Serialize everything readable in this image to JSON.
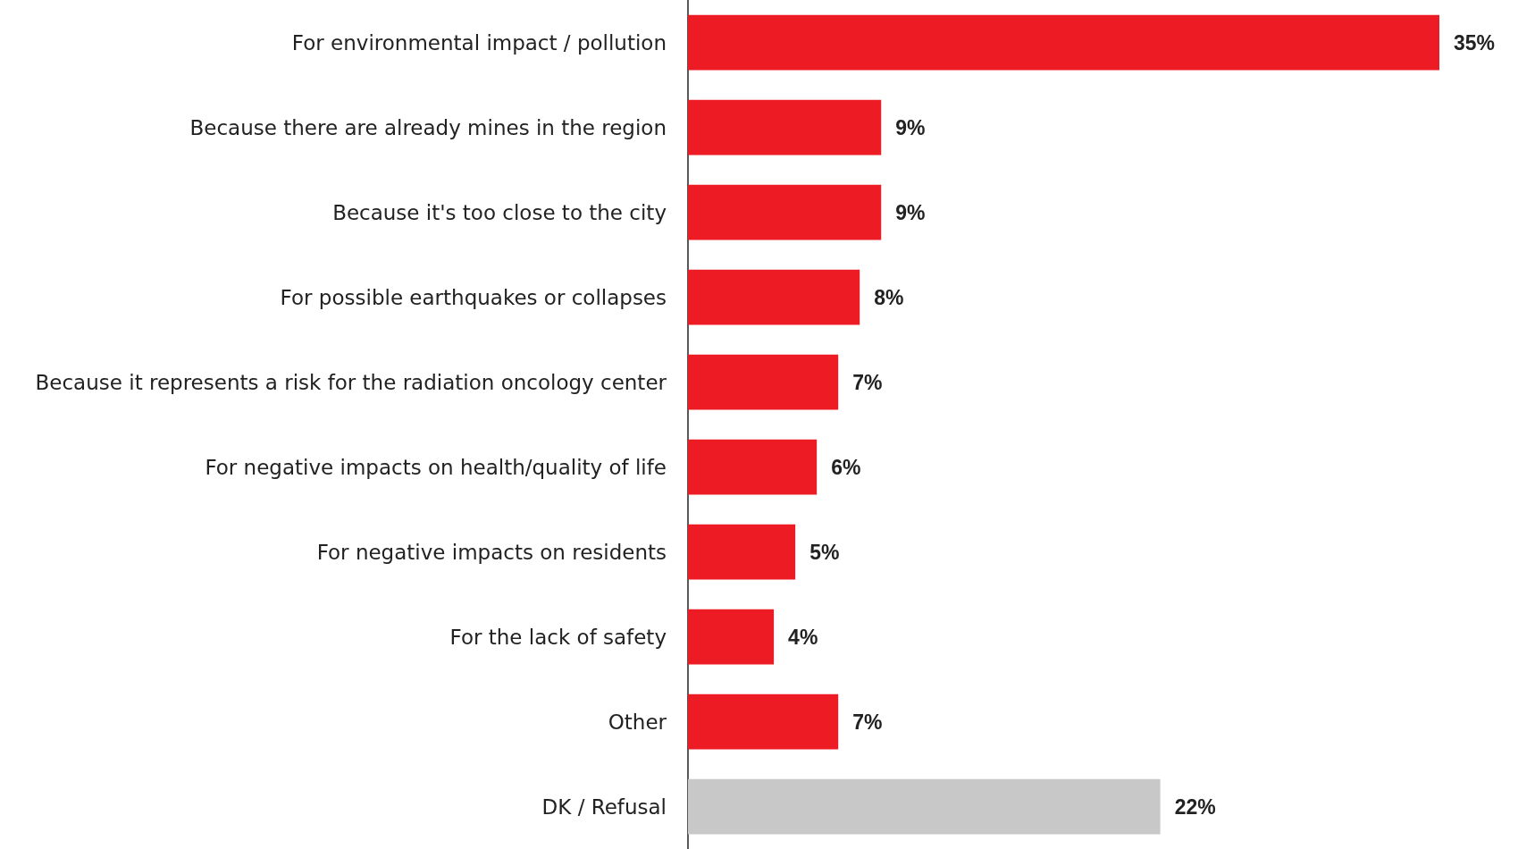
{
  "chart_data": {
    "type": "bar",
    "orientation": "horizontal",
    "grid": false,
    "value_labels": [
      "35%",
      "9%",
      "9%",
      "8%",
      "7%",
      "6%",
      "5%",
      "4%",
      "7%",
      "22%"
    ],
    "categories": [
      "For environmental impact / pollution",
      "Because there are already mines in the region",
      "Because it's too close to the city",
      "For possible earthquakes or collapses",
      "Because it represents a risk for the radiation oncology center",
      "For negative impacts on health/quality of life",
      "For negative impacts on residents",
      "For the lack of safety",
      "Other",
      "DK / Refusal"
    ],
    "values": [
      35,
      9,
      9,
      8,
      7,
      6,
      5,
      4,
      7,
      22
    ],
    "colors": [
      "#ed1c24",
      "#ed1c24",
      "#ed1c24",
      "#ed1c24",
      "#ed1c24",
      "#ed1c24",
      "#ed1c24",
      "#ed1c24",
      "#ed1c24",
      "#c8c8c8"
    ]
  }
}
